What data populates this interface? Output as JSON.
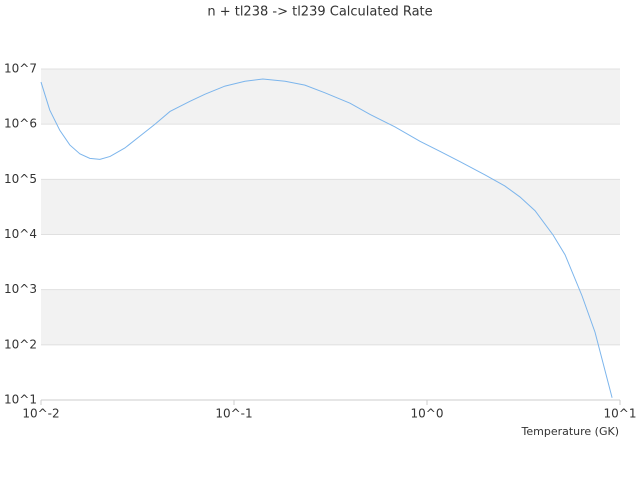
{
  "chart_data": {
    "type": "line",
    "title": "n + tl238 -> tl239 Calculated Rate",
    "x_label": "Temperature (GK)",
    "xlog": true,
    "ylog": true,
    "grid": true,
    "band_color": "#f2f2f2",
    "xlim": [
      0.01,
      10
    ],
    "ylim": [
      10,
      10000000
    ],
    "xticks": [
      {
        "value": 0.01,
        "label": "10^-2"
      },
      {
        "value": 0.1,
        "label": "10^-1"
      },
      {
        "value": 1,
        "label": "10^0"
      },
      {
        "value": 10,
        "label": "10^1"
      }
    ],
    "yticks": [
      {
        "value": 10,
        "label": "10^1"
      },
      {
        "value": 100,
        "label": "10^2"
      },
      {
        "value": 1000,
        "label": "10^3"
      },
      {
        "value": 10000,
        "label": "10^4"
      },
      {
        "value": 100000,
        "label": "10^5"
      },
      {
        "value": 1000000,
        "label": "10^6"
      },
      {
        "value": 10000000,
        "label": "10^7"
      }
    ],
    "x": [
      0.01,
      0.0111,
      0.0125,
      0.0141,
      0.0159,
      0.0179,
      0.0202,
      0.0228,
      0.0272,
      0.0326,
      0.039,
      0.0466,
      0.0591,
      0.0708,
      0.0898,
      0.114,
      0.141,
      0.184,
      0.233,
      0.296,
      0.399,
      0.507,
      0.683,
      0.92,
      1.17,
      1.48,
      2.0,
      2.53,
      3.03,
      3.63,
      4.5,
      5.19,
      6.35,
      7.42,
      9.1
    ],
    "series": [
      {
        "color": "#7cb5ec",
        "values": [
          5800000,
          1800000,
          780000,
          420000,
          290000,
          240000,
          230000,
          260000,
          370000,
          610000,
          1000000,
          1700000,
          2600000,
          3500000,
          4900000,
          6000000,
          6600000,
          6000000,
          5100000,
          3700000,
          2400000,
          1500000,
          890000,
          490000,
          320000,
          210000,
          120000,
          76000,
          48000,
          27000,
          9800,
          4300,
          780,
          170,
          11
        ]
      }
    ]
  }
}
